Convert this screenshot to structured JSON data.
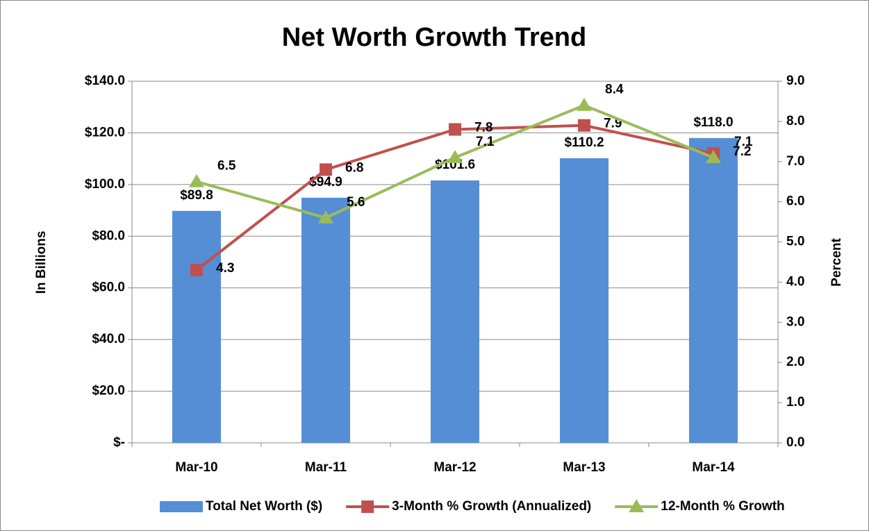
{
  "chart_data": {
    "type": "bar",
    "title": "Net Worth Growth Trend",
    "categories": [
      "Mar-10",
      "Mar-11",
      "Mar-12",
      "Mar-13",
      "Mar-14"
    ],
    "series": [
      {
        "name": "Total Net Worth ($)",
        "type": "bar",
        "color": "#558ed5",
        "values": [
          89.8,
          94.9,
          101.6,
          110.2,
          118.0
        ],
        "value_labels": [
          "$89.8",
          "$94.9",
          "$101.6",
          "$110.2",
          "$118.0"
        ]
      },
      {
        "name": "3-Month % Growth (Annualized)",
        "type": "line",
        "marker": "square",
        "color": "#c0504d",
        "axis": "y2",
        "values": [
          4.3,
          6.8,
          7.8,
          7.9,
          7.2
        ]
      },
      {
        "name": "12-Month % Growth",
        "type": "line",
        "marker": "triangle",
        "color": "#9bbb59",
        "axis": "y2",
        "values": [
          6.5,
          5.6,
          7.1,
          8.4,
          7.1
        ]
      }
    ],
    "ylabel": "In Billions",
    "y2label": "Percent",
    "ylim": [
      0,
      140
    ],
    "yticks": [
      {
        "value": 0,
        "label": "$-"
      },
      {
        "value": 20,
        "label": "$20.0"
      },
      {
        "value": 40,
        "label": "$40.0"
      },
      {
        "value": 60,
        "label": "$60.0"
      },
      {
        "value": 80,
        "label": "$80.0"
      },
      {
        "value": 100,
        "label": "$100.0"
      },
      {
        "value": 120,
        "label": "$120.0"
      },
      {
        "value": 140,
        "label": "$140.0"
      }
    ],
    "y2lim": [
      0,
      9
    ],
    "y2ticks": [
      {
        "value": 0,
        "label": "0.0"
      },
      {
        "value": 1,
        "label": "1.0"
      },
      {
        "value": 2,
        "label": "2.0"
      },
      {
        "value": 3,
        "label": "3.0"
      },
      {
        "value": 4,
        "label": "4.0"
      },
      {
        "value": 5,
        "label": "5.0"
      },
      {
        "value": 6,
        "label": "6.0"
      },
      {
        "value": 7,
        "label": "7.0"
      },
      {
        "value": 8,
        "label": "8.0"
      },
      {
        "value": 9,
        "label": "9.0"
      }
    ],
    "grid": true,
    "legend": "bottom"
  }
}
